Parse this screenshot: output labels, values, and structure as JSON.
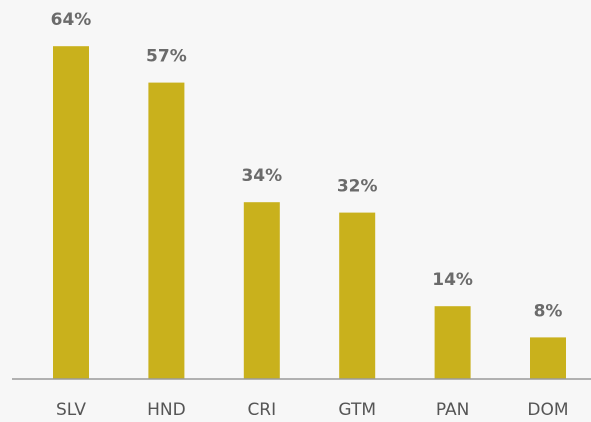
{
  "chart_data": {
    "type": "bar",
    "categories": [
      "SLV",
      "HND",
      "CRI",
      "GTM",
      "PAN",
      "DOM"
    ],
    "values": [
      64,
      57,
      34,
      32,
      14,
      8
    ],
    "value_labels": [
      "64%",
      "57%",
      "34%",
      "32%",
      "14%",
      "8%"
    ],
    "color": "#c9b11c"
  }
}
